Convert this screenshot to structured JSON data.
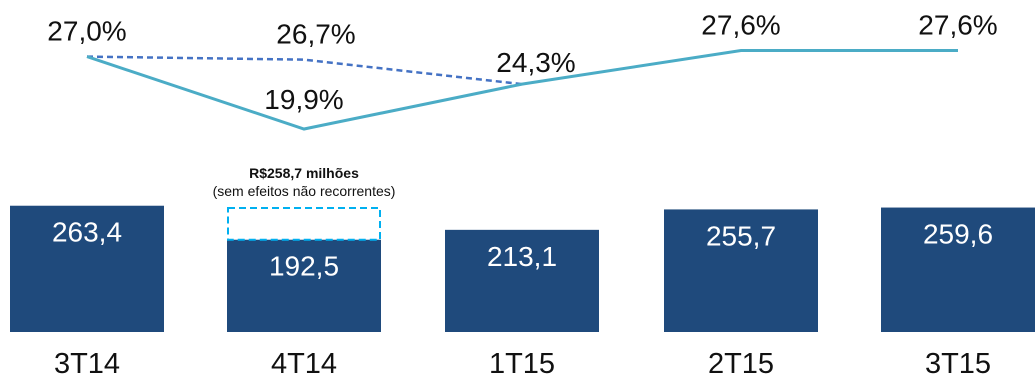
{
  "chart_data": {
    "type": "bar",
    "categories": [
      "3T14",
      "4T14",
      "1T15",
      "2T15",
      "3T15"
    ],
    "values": [
      263.4,
      192.5,
      213.1,
      255.7,
      259.6
    ],
    "value_labels": [
      "263,4",
      "192,5",
      "213,1",
      "255,7",
      "259,6"
    ],
    "bar_color": "#1f4a7c",
    "line": {
      "color": "#4bacc6",
      "values": [
        27.0,
        19.9,
        24.3,
        27.6,
        27.6
      ],
      "labels": [
        "27,0%",
        "19,9%",
        "24,3%",
        "27,6%",
        "27,6%"
      ]
    },
    "line_dashed": {
      "color": "#4472c4",
      "values": [
        27.0,
        26.7,
        24.3
      ],
      "labels": [
        "27,0%",
        "26,7%",
        "24,3%"
      ]
    },
    "annotation": {
      "category": "4T14",
      "value": 258.7,
      "title": "R$258,7 milhões",
      "subtitle": "(sem efeitos não recorrentes)",
      "color": "#00b0f0"
    }
  }
}
